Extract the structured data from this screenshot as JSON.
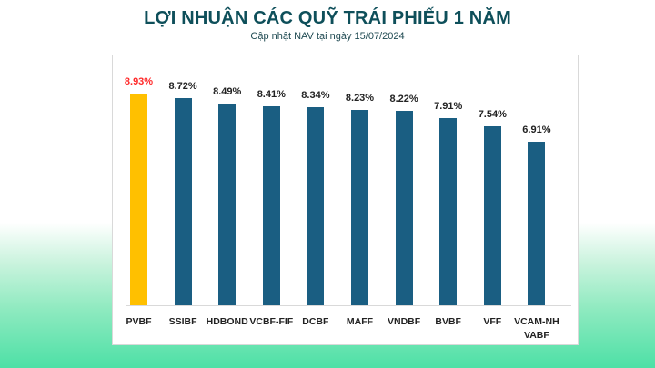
{
  "header": {
    "title": "LỢI NHUẬN CÁC QUỸ TRÁI PHIẾU 1 NĂM",
    "subtitle": "Cập nhật NAV tại ngày 15/07/2024"
  },
  "colors": {
    "default_bar": "#1a5e82",
    "highlight_bar": "#ffc000",
    "highlight_label": "#ff2a2a",
    "title": "#0e4f5a"
  },
  "bars": [
    {
      "category": "PVBF",
      "label": "8.93%",
      "value": 8.93,
      "highlight": true
    },
    {
      "category": "SSIBF",
      "label": "8.72%",
      "value": 8.72,
      "highlight": false
    },
    {
      "category": "HDBOND",
      "label": "8.49%",
      "value": 8.49,
      "highlight": false
    },
    {
      "category": "VCBF-FIF",
      "label": "8.41%",
      "value": 8.41,
      "highlight": false
    },
    {
      "category": "DCBF",
      "label": "8.34%",
      "value": 8.34,
      "highlight": false
    },
    {
      "category": "MAFF",
      "label": "8.23%",
      "value": 8.23,
      "highlight": false
    },
    {
      "category": "VNDBF",
      "label": "8.22%",
      "value": 8.22,
      "highlight": false
    },
    {
      "category": "BVBF",
      "label": "7.91%",
      "value": 7.91,
      "highlight": false
    },
    {
      "category": "VFF",
      "label": "7.54%",
      "value": 7.54,
      "highlight": false
    },
    {
      "category": "VCAM-NH VABF",
      "label": "6.91%",
      "value": 6.91,
      "highlight": false
    }
  ],
  "chart_data": {
    "type": "bar",
    "title": "LỢI NHUẬN CÁC QUỸ TRÁI PHIẾU 1 NĂM",
    "subtitle": "Cập nhật NAV tại ngày 15/07/2024",
    "categories": [
      "PVBF",
      "SSIBF",
      "HDBOND",
      "VCBF-FIF",
      "DCBF",
      "MAFF",
      "VNDBF",
      "BVBF",
      "VFF",
      "VCAM-NH VABF"
    ],
    "values": [
      8.93,
      8.72,
      8.49,
      8.41,
      8.34,
      8.23,
      8.22,
      7.91,
      7.54,
      6.91
    ],
    "data_labels": [
      "8.93%",
      "8.72%",
      "8.49%",
      "8.41%",
      "8.34%",
      "8.23%",
      "8.22%",
      "7.91%",
      "7.54%",
      "6.91%"
    ],
    "xlabel": "",
    "ylabel": "",
    "unit": "%",
    "grid": false,
    "legend": false,
    "highlighted_category": "PVBF"
  }
}
